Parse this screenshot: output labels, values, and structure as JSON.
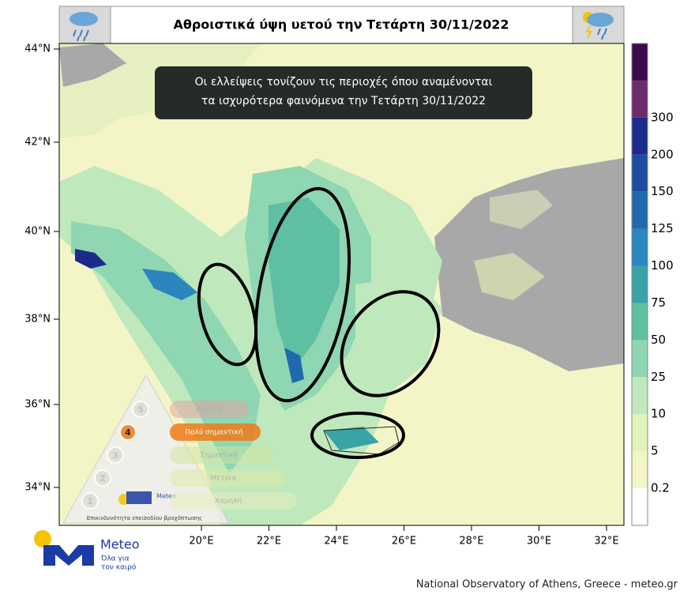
{
  "title": "Αθροιστικά ύψη υετού την Τετάρτη 30/11/2022",
  "annotation": [
    "Οι ελλείψεις τονίζουν τις περιοχές όπου αναμένονται",
    "τα ισχυρότερα φαινόμενα την Τετάρτη 30/11/2022"
  ],
  "lat_labels": [
    "44°N",
    "42°N",
    "40°N",
    "38°N",
    "36°N",
    "34°N"
  ],
  "lon_labels": [
    "20°E",
    "22°E",
    "24°E",
    "26°E",
    "28°E",
    "30°E",
    "32°E"
  ],
  "colorbar": {
    "labels": [
      "0.2",
      "5",
      "10",
      "25",
      "50",
      "75",
      "100",
      "125",
      "150",
      "200",
      "300"
    ],
    "colors": [
      "#ffffff",
      "#f3f5c6",
      "#e2f2b8",
      "#bfe8bd",
      "#8fd6b2",
      "#5fbfa3",
      "#3aa3a8",
      "#2a86bd",
      "#1f6aae",
      "#1b4ea2",
      "#1a2b8c",
      "#6e2b6b",
      "#3b0b4d"
    ]
  },
  "risk_legend": {
    "levels": [
      {
        "number": "5",
        "label": "Ακραία"
      },
      {
        "number": "4",
        "label": "Πολύ σημαντική"
      },
      {
        "number": "3",
        "label": "Σημαντική"
      },
      {
        "number": "2",
        "label": "Μέτρια"
      },
      {
        "number": "1",
        "label": "Χαμηλή"
      }
    ],
    "caption": "Επικινδυνότητα επεισοδίου βροχόπτωσης",
    "brand": "Meteo"
  },
  "logo": {
    "name": "Meteo",
    "tagline": [
      "Όλα για",
      "τον καιρό"
    ]
  },
  "footer": "National Observatory of Athens, Greece - meteo.gr"
}
